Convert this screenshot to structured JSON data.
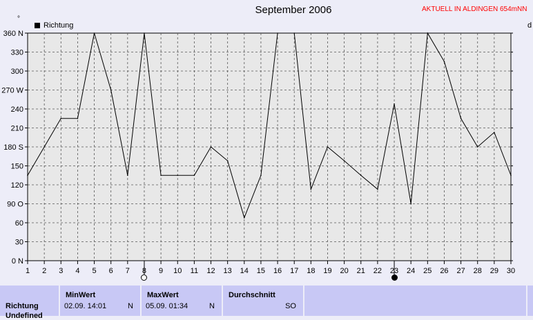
{
  "header": {
    "title": "September 2006",
    "live_label": "AKTUELL IN ALDINGEN 654mNN",
    "unit_right": "d",
    "degree_mark": "°"
  },
  "legend": {
    "label": "Richtung"
  },
  "chart_data": {
    "type": "line",
    "title": "September 2006",
    "x": [
      1,
      2,
      3,
      4,
      5,
      6,
      7,
      8,
      9,
      10,
      11,
      12,
      13,
      14,
      15,
      16,
      17,
      18,
      19,
      20,
      21,
      22,
      23,
      24,
      25,
      26,
      27,
      28,
      29,
      30
    ],
    "series": [
      {
        "name": "Richtung",
        "points": [
          [
            1,
            135
          ],
          [
            2,
            180
          ],
          [
            3,
            225
          ],
          [
            4,
            225
          ],
          [
            5,
            360
          ],
          [
            6,
            270
          ],
          [
            7,
            135
          ],
          [
            8,
            360
          ],
          [
            9,
            135
          ],
          [
            10,
            135
          ],
          [
            11,
            135
          ],
          [
            12,
            180
          ],
          [
            13,
            158
          ],
          [
            14,
            68
          ],
          [
            15,
            135
          ],
          [
            16,
            360
          ],
          [
            17,
            360
          ],
          [
            18,
            113
          ],
          [
            19,
            180
          ],
          [
            20,
            158
          ],
          [
            21,
            135
          ],
          [
            22,
            113
          ],
          [
            23,
            248
          ],
          [
            24,
            90
          ],
          [
            25,
            360
          ],
          [
            26,
            315
          ],
          [
            27,
            225
          ],
          [
            28,
            180
          ],
          [
            29,
            203
          ],
          [
            30,
            135
          ]
        ],
        "color": "#000000"
      }
    ],
    "xlim": [
      1,
      30
    ],
    "ylim": [
      0,
      360
    ],
    "y_ticks": [
      0,
      30,
      60,
      90,
      120,
      150,
      180,
      210,
      240,
      270,
      300,
      330,
      360
    ],
    "y_tick_labels": [
      "0 N",
      "30",
      "60",
      "90 O",
      "120",
      "150",
      "180 S",
      "210",
      "240",
      "270 W",
      "300",
      "330",
      "360 N"
    ],
    "x_ticks": [
      "1",
      "2",
      "3",
      "4",
      "5",
      "6",
      "7",
      "8",
      "9",
      "10",
      "11",
      "12",
      "13",
      "14",
      "15",
      "16",
      "17",
      "18",
      "19",
      "20",
      "21",
      "22",
      "23",
      "24",
      "25",
      "26",
      "27",
      "28",
      "29",
      "30"
    ],
    "grid": true,
    "plot_background": "#e8e8e8",
    "moon_phases": [
      {
        "day": 8,
        "phase": "full"
      },
      {
        "day": 23,
        "phase": "new"
      }
    ]
  },
  "stats": {
    "row_label": "Richtung",
    "row_label_2": "Undefined",
    "min": {
      "header": "MinWert",
      "value": "02.09.  14:01",
      "dir": "N"
    },
    "max": {
      "header": "MaxWert",
      "value": "05.09.  01:34",
      "dir": "N"
    },
    "avg": {
      "header": "Durchschnitt",
      "value": "",
      "dir": "SO"
    }
  }
}
